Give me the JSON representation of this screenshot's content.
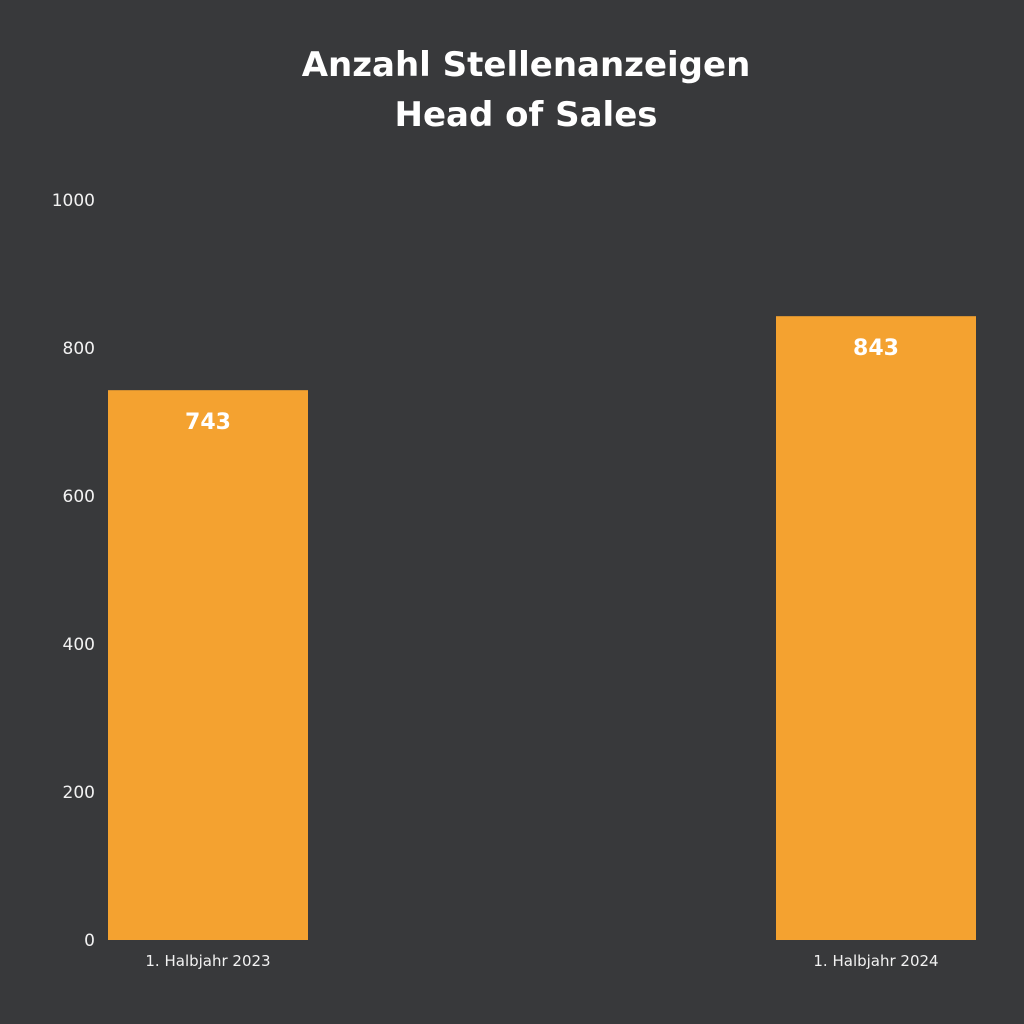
{
  "chart_data": {
    "type": "bar",
    "title": [
      "Anzahl Stellenanzeigen",
      "Head of Sales"
    ],
    "categories": [
      "1. Halbjahr 2023",
      "1. Halbjahr 2024"
    ],
    "values": [
      743,
      843
    ],
    "data_labels": [
      "743",
      "843"
    ],
    "ylim": [
      0,
      1000
    ],
    "yticks": [
      0,
      200,
      400,
      600,
      800,
      1000
    ],
    "xlabel": "",
    "ylabel": "",
    "grid": false,
    "legend": "none",
    "bar_color": "#f4a230",
    "background_color": "#38393b",
    "text_color": "#ffffff"
  }
}
